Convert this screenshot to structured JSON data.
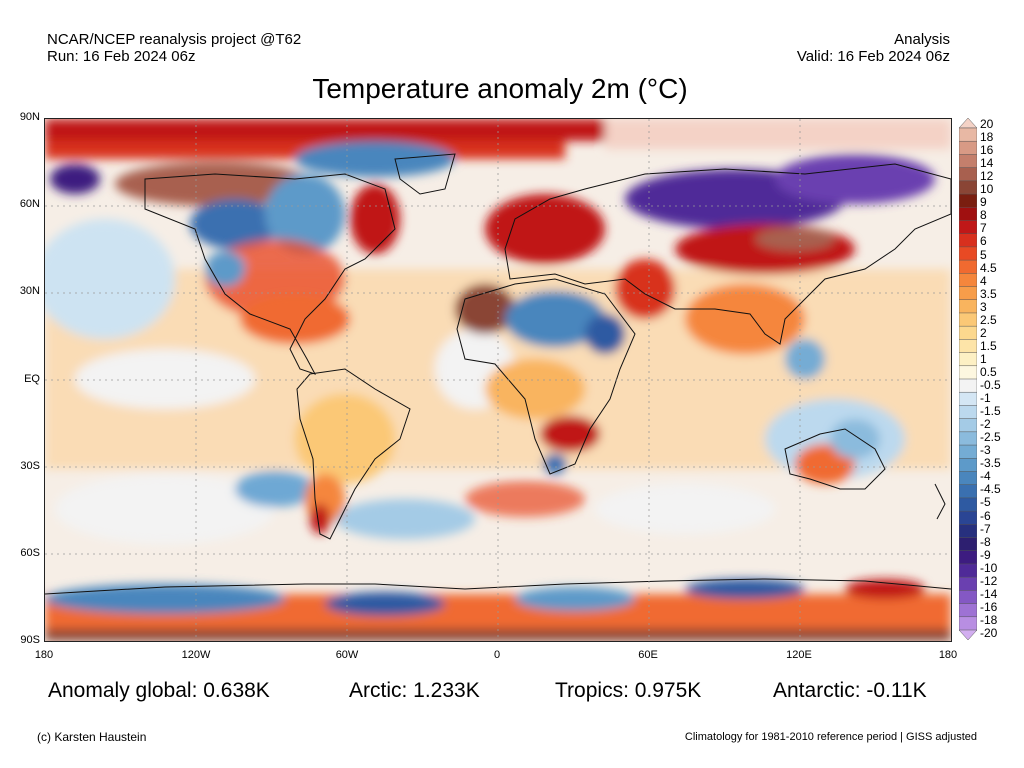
{
  "header": {
    "source": "NCAR/NCEP reanalysis project @T62",
    "run": "Run: 16 Feb 2024 06z",
    "type": "Analysis",
    "valid": "Valid: 16 Feb 2024 06z"
  },
  "title": "Temperature anomaly 2m (°C)",
  "axes": {
    "lat_labels": [
      "90N",
      "60N",
      "30N",
      "EQ",
      "30S",
      "60S",
      "90S"
    ],
    "lon_labels": [
      "180",
      "120W",
      "60W",
      "0",
      "60E",
      "120E",
      "180"
    ]
  },
  "stats": {
    "global": "Anomaly global: 0.638K",
    "arctic": "Arctic: 1.233K",
    "tropics": "Tropics: 0.975K",
    "antarctic": "Antarctic: -0.11K"
  },
  "footer": {
    "credit": "(c) Karsten Haustein",
    "climatology": "Climatology for 1981-2010 reference period | GISS adjusted"
  },
  "colorbar": {
    "labels": [
      "20",
      "18",
      "16",
      "14",
      "12",
      "10",
      "9",
      "8",
      "7",
      "6",
      "5",
      "4.5",
      "4",
      "3.5",
      "3",
      "2.5",
      "2",
      "1.5",
      "1",
      "0.5",
      "-0.5",
      "-1",
      "-1.5",
      "-2",
      "-2.5",
      "-3",
      "-3.5",
      "-4",
      "-4.5",
      "-5",
      "-6",
      "-7",
      "-8",
      "-9",
      "-10",
      "-12",
      "-14",
      "-16",
      "-18",
      "-20"
    ],
    "colors": [
      "#f4d2c6",
      "#e8b8a4",
      "#d89a85",
      "#c47f6c",
      "#a8604f",
      "#8a4535",
      "#7a1e10",
      "#a01010",
      "#c01818",
      "#d8301e",
      "#e84a24",
      "#f06a30",
      "#f5863c",
      "#f79d4a",
      "#f9b45e",
      "#fbc876",
      "#fcd88e",
      "#fde4a8",
      "#fdf0c4",
      "#fdf7e0",
      "#f3f3f3",
      "#d4e6f4",
      "#bcd9ee",
      "#a4cbe6",
      "#8bbbdd",
      "#74acd4",
      "#5d9ac9",
      "#4a86bd",
      "#3a70b0",
      "#2e5aa2",
      "#2a4594",
      "#27307e",
      "#2d1f70",
      "#3d1c80",
      "#4f2a98",
      "#6a40b0",
      "#8458c4",
      "#9e72d4",
      "#b88ee2",
      "#d2aef0"
    ]
  }
}
